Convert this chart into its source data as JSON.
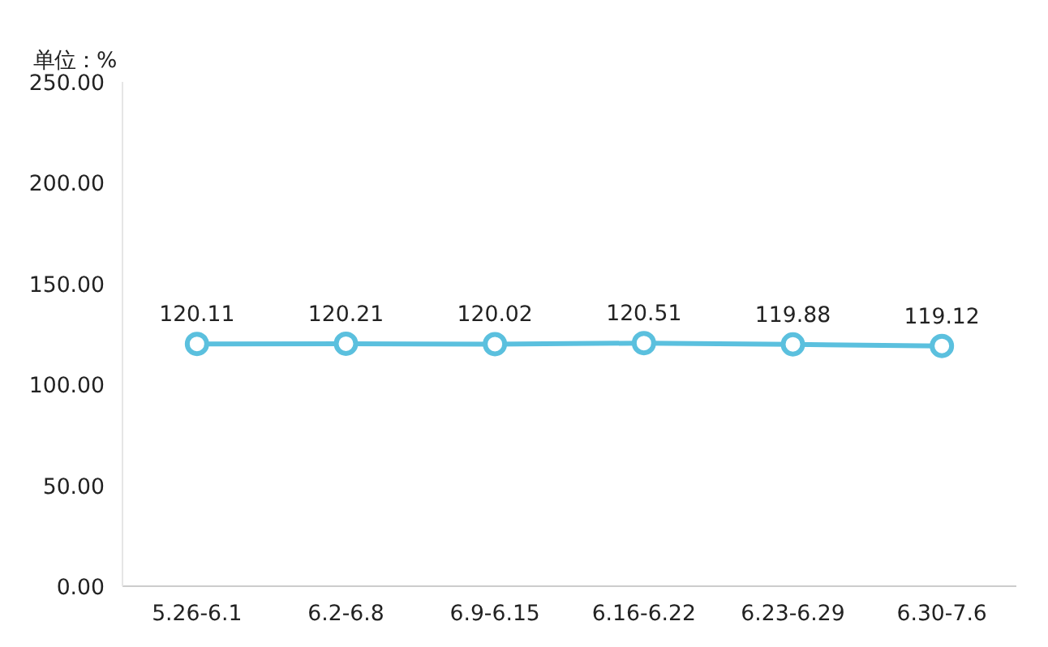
{
  "chart_data": {
    "type": "line",
    "ylabel": "单位：%",
    "categories": [
      "5.26-6.1",
      "6.2-6.8",
      "6.9-6.15",
      "6.16-6.22",
      "6.23-6.29",
      "6.30-7.6"
    ],
    "series": [
      {
        "color": "#5bc0de",
        "values": [
          120.11,
          120.21,
          120.02,
          120.51,
          119.88,
          119.12
        ]
      }
    ],
    "ylim": [
      0,
      250
    ],
    "yticks": [
      {
        "value": 0,
        "label": "0.00"
      },
      {
        "value": 50,
        "label": "50.00"
      },
      {
        "value": 100,
        "label": "100.00"
      },
      {
        "value": 150,
        "label": "150.00"
      },
      {
        "value": 200,
        "label": "200.00"
      },
      {
        "value": 250,
        "label": "250.00"
      }
    ],
    "data_labels": true,
    "grid": false,
    "marker": "circle",
    "line_style": "solid"
  }
}
